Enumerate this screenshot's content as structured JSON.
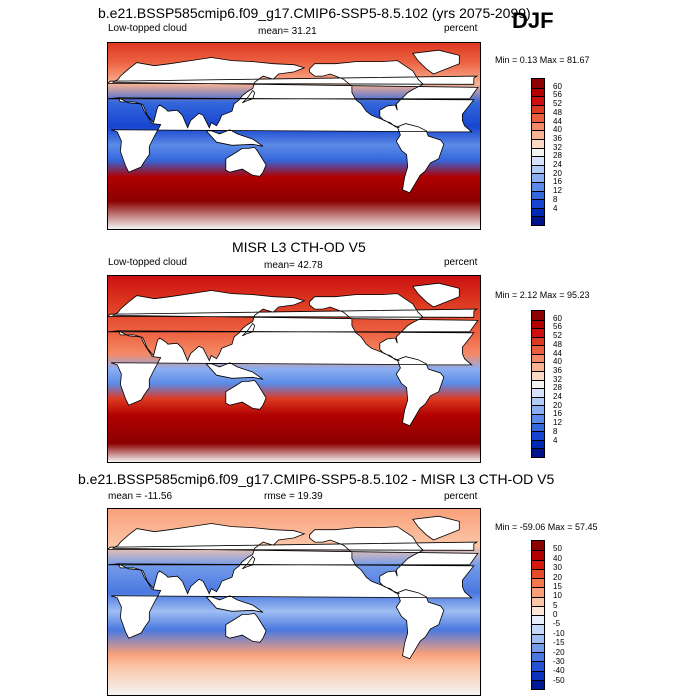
{
  "season": "DJF",
  "panels": [
    {
      "id": "model",
      "title": "b.e21.BSSP585cmip6.f09_g17.CMIP6-SSP5-8.5.102 (yrs 2075-2099)",
      "left_label": "Low-topped cloud",
      "center_label": "mean=  31.21",
      "right_label": "percent",
      "minmax": "Min =   0.13 Max =  81.67",
      "colorbar": {
        "labels": [
          "60",
          "56",
          "52",
          "48",
          "44",
          "40",
          "36",
          "32",
          "28",
          "24",
          "20",
          "16",
          "12",
          "8",
          "4"
        ],
        "colors": [
          "#8b0000",
          "#b00000",
          "#cc1010",
          "#dd3a22",
          "#ec6040",
          "#f58a66",
          "#f9b394",
          "#fbd9c2",
          "#f4f4f4",
          "#d6e3fa",
          "#b3ccf5",
          "#8aaef0",
          "#5c8ae6",
          "#3467dc",
          "#1745cf",
          "#0028b2",
          "#00128c"
        ]
      },
      "mode": "model"
    },
    {
      "id": "obs",
      "title": "MISR L3 CTH-OD V5",
      "left_label": "Low-topped cloud",
      "center_label": "mean=  42.78",
      "right_label": "percent",
      "minmax": "Min =   2.12 Max =  95.23",
      "colorbar": {
        "labels": [
          "60",
          "56",
          "52",
          "48",
          "44",
          "40",
          "36",
          "32",
          "28",
          "24",
          "20",
          "16",
          "12",
          "8",
          "4"
        ],
        "colors": [
          "#8b0000",
          "#b00000",
          "#cc1010",
          "#dd3a22",
          "#ec6040",
          "#f58a66",
          "#f9b394",
          "#fbd9c2",
          "#f4f4f4",
          "#d6e3fa",
          "#b3ccf5",
          "#8aaef0",
          "#5c8ae6",
          "#3467dc",
          "#1745cf",
          "#0028b2",
          "#00128c"
        ]
      },
      "mode": "obs"
    },
    {
      "id": "diff",
      "title": "b.e21.BSSP585cmip6.f09_g17.CMIP6-SSP5-8.5.102 - MISR L3 CTH-OD V5",
      "left_label": "mean = -11.56",
      "center_label": "rmse =  19.39",
      "right_label": "percent",
      "minmax": "Min = -59.06 Max =  57.45",
      "colorbar": {
        "labels": [
          "50",
          "40",
          "30",
          "20",
          "15",
          "10",
          "5",
          "0",
          "-5",
          "-10",
          "-15",
          "-20",
          "-30",
          "-40",
          "-50"
        ],
        "colors": [
          "#8b0000",
          "#b00000",
          "#d21a10",
          "#e84a2c",
          "#f5774f",
          "#f9a07a",
          "#fbc6a8",
          "#fde6d8",
          "#e6eefb",
          "#c6d8f7",
          "#9fbdf2",
          "#759cea",
          "#4a78e0",
          "#2552d4",
          "#0a32bc",
          "#001a96"
        ]
      },
      "mode": "diff"
    }
  ]
}
